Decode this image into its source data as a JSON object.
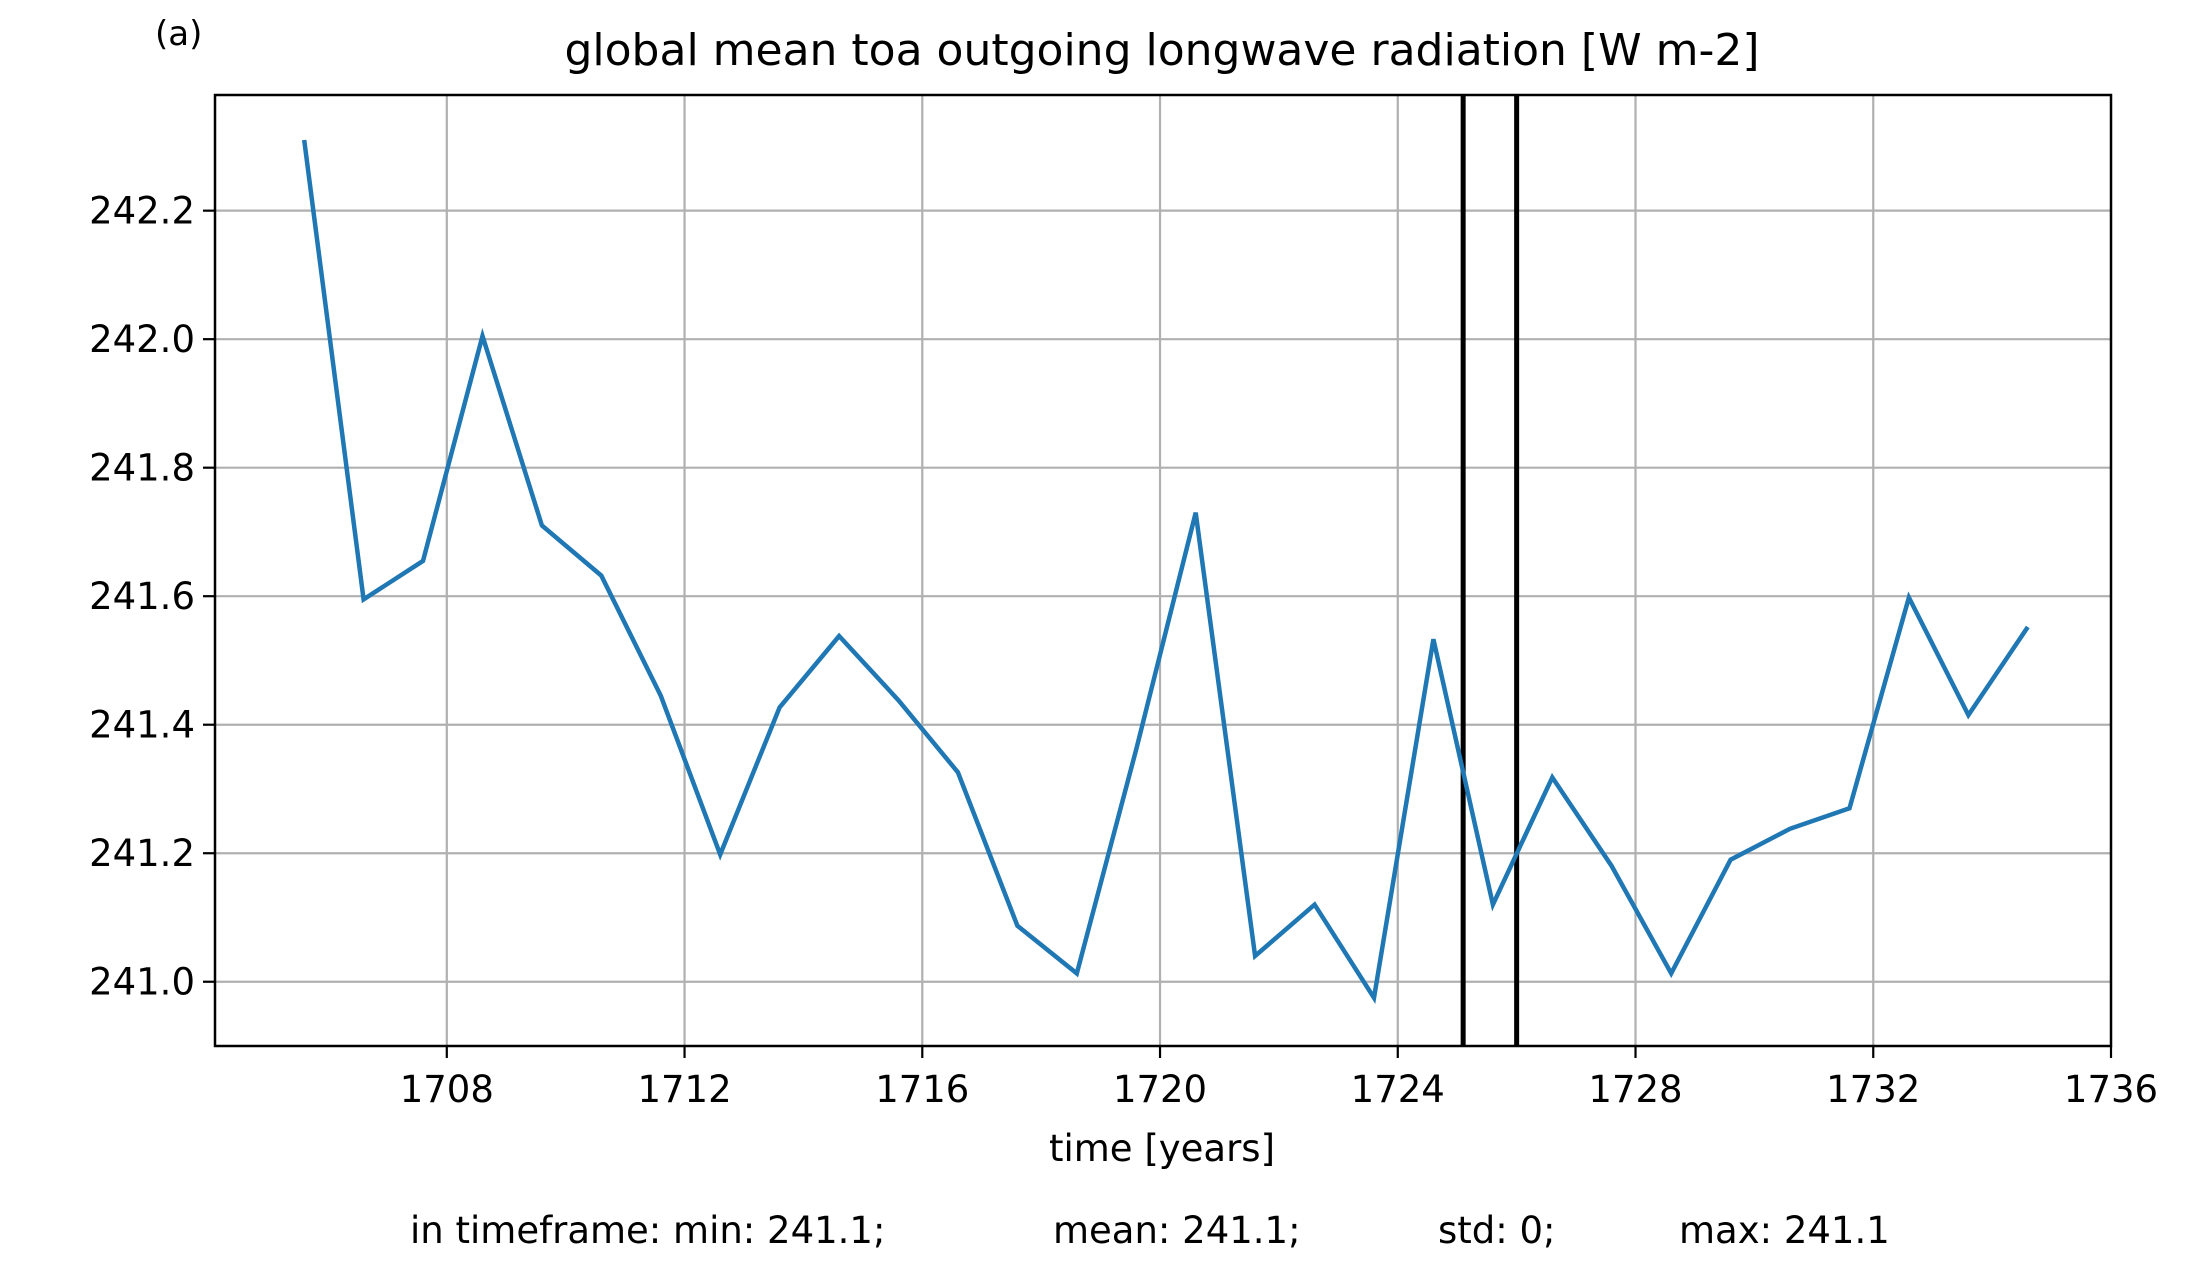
{
  "panel_label": "(a)",
  "chart_data": {
    "type": "line",
    "title": "global mean toa outgoing longwave radiation [W m-2]",
    "xlabel": "time [years]",
    "ylabel": "",
    "xlim": [
      1704.1,
      1736.0
    ],
    "ylim": [
      240.9,
      242.38
    ],
    "grid": true,
    "x_ticks": [
      1708,
      1712,
      1716,
      1720,
      1724,
      1728,
      1732,
      1736
    ],
    "y_ticks": [
      241.0,
      241.2,
      241.4,
      241.6,
      241.8,
      242.0,
      242.2
    ],
    "series": [
      {
        "name": "",
        "color": "#1f77b4",
        "x": [
          1705.6,
          1706.6,
          1707.6,
          1708.6,
          1709.6,
          1710.6,
          1711.6,
          1712.6,
          1713.6,
          1714.6,
          1715.6,
          1716.6,
          1717.6,
          1718.6,
          1719.6,
          1720.6,
          1721.6,
          1722.6,
          1723.6,
          1724.6,
          1725.6,
          1726.6,
          1727.6,
          1728.6,
          1729.6,
          1730.6,
          1731.6,
          1732.6,
          1733.6,
          1734.6
        ],
        "values": [
          242.31,
          241.595,
          241.655,
          242.005,
          241.71,
          241.632,
          241.445,
          241.198,
          241.427,
          241.538,
          241.438,
          241.326,
          241.087,
          241.013,
          241.362,
          241.73,
          241.04,
          241.12,
          240.975,
          241.533,
          241.12,
          241.318,
          241.18,
          241.013,
          241.19,
          241.238,
          241.27,
          241.598,
          241.415,
          241.552
        ]
      }
    ],
    "vlines": [
      1725.1,
      1726.0
    ],
    "vline_color": "#000000",
    "footer": {
      "min": "in timeframe: min: 241.1;",
      "mean": "mean: 241.1;",
      "std": "std: 0;",
      "max": "max: 241.1"
    }
  }
}
